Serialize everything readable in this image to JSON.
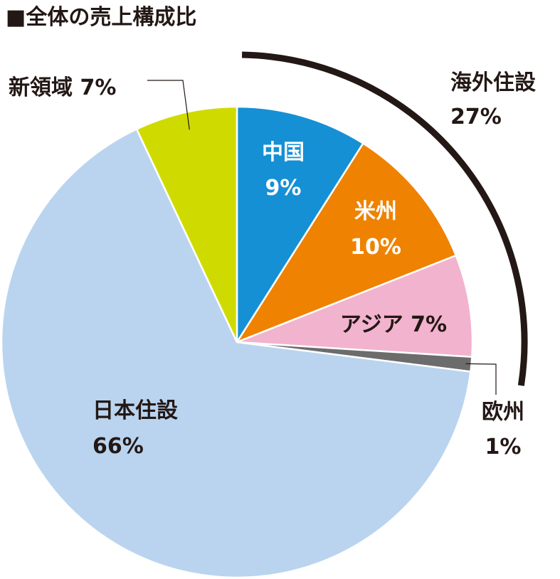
{
  "title": "■全体の売上構成比",
  "chart_data": {
    "type": "pie",
    "title": "■全体の売上構成比",
    "unit": "%",
    "slices": [
      {
        "name": "中国",
        "value": 9,
        "label_line1": "中国",
        "label_line2": "9%",
        "color": "#1590d5"
      },
      {
        "name": "米州",
        "value": 10,
        "label_line1": "米州",
        "label_line2": "10%",
        "color": "#ef8200"
      },
      {
        "name": "アジア",
        "value": 7,
        "label_line1": "アジア 7%",
        "label_line2": "",
        "color": "#f2b3ce"
      },
      {
        "name": "欧州",
        "value": 1,
        "label_line1": "欧州",
        "label_line2": "1%",
        "color": "#6c6c6c"
      },
      {
        "name": "日本住設",
        "value": 66,
        "label_line1": "日本住設",
        "label_line2": "66%",
        "color": "#bad4ef"
      },
      {
        "name": "新領域",
        "value": 7,
        "label_line1": "新領域 7%",
        "label_line2": "",
        "color": "#cfdb00"
      }
    ],
    "group": {
      "name": "海外住設",
      "value": 27,
      "label_line1": "海外住設",
      "label_line2": "27%",
      "members": [
        "中国",
        "米州",
        "アジア",
        "欧州"
      ]
    },
    "start": "12 o'clock",
    "direction": "clockwise",
    "legend": "none"
  }
}
